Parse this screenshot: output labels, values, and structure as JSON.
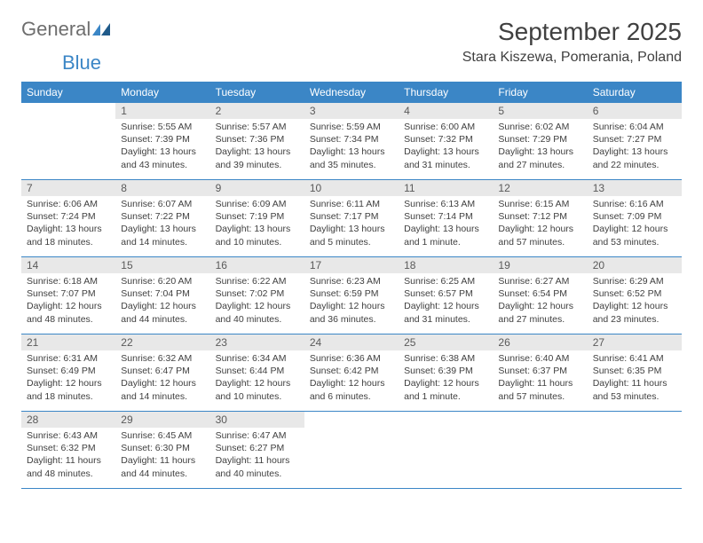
{
  "logo": {
    "text1": "General",
    "text2": "Blue"
  },
  "title": "September 2025",
  "location": "Stara Kiszewa, Pomerania, Poland",
  "colors": {
    "header_bg": "#3b86c6",
    "daynum_bg": "#e8e8e8",
    "text": "#404040"
  },
  "weekdays": [
    "Sunday",
    "Monday",
    "Tuesday",
    "Wednesday",
    "Thursday",
    "Friday",
    "Saturday"
  ],
  "days": [
    {
      "n": "",
      "sr": "",
      "ss": "",
      "dl": ""
    },
    {
      "n": "1",
      "sr": "Sunrise: 5:55 AM",
      "ss": "Sunset: 7:39 PM",
      "dl": "Daylight: 13 hours and 43 minutes."
    },
    {
      "n": "2",
      "sr": "Sunrise: 5:57 AM",
      "ss": "Sunset: 7:36 PM",
      "dl": "Daylight: 13 hours and 39 minutes."
    },
    {
      "n": "3",
      "sr": "Sunrise: 5:59 AM",
      "ss": "Sunset: 7:34 PM",
      "dl": "Daylight: 13 hours and 35 minutes."
    },
    {
      "n": "4",
      "sr": "Sunrise: 6:00 AM",
      "ss": "Sunset: 7:32 PM",
      "dl": "Daylight: 13 hours and 31 minutes."
    },
    {
      "n": "5",
      "sr": "Sunrise: 6:02 AM",
      "ss": "Sunset: 7:29 PM",
      "dl": "Daylight: 13 hours and 27 minutes."
    },
    {
      "n": "6",
      "sr": "Sunrise: 6:04 AM",
      "ss": "Sunset: 7:27 PM",
      "dl": "Daylight: 13 hours and 22 minutes."
    },
    {
      "n": "7",
      "sr": "Sunrise: 6:06 AM",
      "ss": "Sunset: 7:24 PM",
      "dl": "Daylight: 13 hours and 18 minutes."
    },
    {
      "n": "8",
      "sr": "Sunrise: 6:07 AM",
      "ss": "Sunset: 7:22 PM",
      "dl": "Daylight: 13 hours and 14 minutes."
    },
    {
      "n": "9",
      "sr": "Sunrise: 6:09 AM",
      "ss": "Sunset: 7:19 PM",
      "dl": "Daylight: 13 hours and 10 minutes."
    },
    {
      "n": "10",
      "sr": "Sunrise: 6:11 AM",
      "ss": "Sunset: 7:17 PM",
      "dl": "Daylight: 13 hours and 5 minutes."
    },
    {
      "n": "11",
      "sr": "Sunrise: 6:13 AM",
      "ss": "Sunset: 7:14 PM",
      "dl": "Daylight: 13 hours and 1 minute."
    },
    {
      "n": "12",
      "sr": "Sunrise: 6:15 AM",
      "ss": "Sunset: 7:12 PM",
      "dl": "Daylight: 12 hours and 57 minutes."
    },
    {
      "n": "13",
      "sr": "Sunrise: 6:16 AM",
      "ss": "Sunset: 7:09 PM",
      "dl": "Daylight: 12 hours and 53 minutes."
    },
    {
      "n": "14",
      "sr": "Sunrise: 6:18 AM",
      "ss": "Sunset: 7:07 PM",
      "dl": "Daylight: 12 hours and 48 minutes."
    },
    {
      "n": "15",
      "sr": "Sunrise: 6:20 AM",
      "ss": "Sunset: 7:04 PM",
      "dl": "Daylight: 12 hours and 44 minutes."
    },
    {
      "n": "16",
      "sr": "Sunrise: 6:22 AM",
      "ss": "Sunset: 7:02 PM",
      "dl": "Daylight: 12 hours and 40 minutes."
    },
    {
      "n": "17",
      "sr": "Sunrise: 6:23 AM",
      "ss": "Sunset: 6:59 PM",
      "dl": "Daylight: 12 hours and 36 minutes."
    },
    {
      "n": "18",
      "sr": "Sunrise: 6:25 AM",
      "ss": "Sunset: 6:57 PM",
      "dl": "Daylight: 12 hours and 31 minutes."
    },
    {
      "n": "19",
      "sr": "Sunrise: 6:27 AM",
      "ss": "Sunset: 6:54 PM",
      "dl": "Daylight: 12 hours and 27 minutes."
    },
    {
      "n": "20",
      "sr": "Sunrise: 6:29 AM",
      "ss": "Sunset: 6:52 PM",
      "dl": "Daylight: 12 hours and 23 minutes."
    },
    {
      "n": "21",
      "sr": "Sunrise: 6:31 AM",
      "ss": "Sunset: 6:49 PM",
      "dl": "Daylight: 12 hours and 18 minutes."
    },
    {
      "n": "22",
      "sr": "Sunrise: 6:32 AM",
      "ss": "Sunset: 6:47 PM",
      "dl": "Daylight: 12 hours and 14 minutes."
    },
    {
      "n": "23",
      "sr": "Sunrise: 6:34 AM",
      "ss": "Sunset: 6:44 PM",
      "dl": "Daylight: 12 hours and 10 minutes."
    },
    {
      "n": "24",
      "sr": "Sunrise: 6:36 AM",
      "ss": "Sunset: 6:42 PM",
      "dl": "Daylight: 12 hours and 6 minutes."
    },
    {
      "n": "25",
      "sr": "Sunrise: 6:38 AM",
      "ss": "Sunset: 6:39 PM",
      "dl": "Daylight: 12 hours and 1 minute."
    },
    {
      "n": "26",
      "sr": "Sunrise: 6:40 AM",
      "ss": "Sunset: 6:37 PM",
      "dl": "Daylight: 11 hours and 57 minutes."
    },
    {
      "n": "27",
      "sr": "Sunrise: 6:41 AM",
      "ss": "Sunset: 6:35 PM",
      "dl": "Daylight: 11 hours and 53 minutes."
    },
    {
      "n": "28",
      "sr": "Sunrise: 6:43 AM",
      "ss": "Sunset: 6:32 PM",
      "dl": "Daylight: 11 hours and 48 minutes."
    },
    {
      "n": "29",
      "sr": "Sunrise: 6:45 AM",
      "ss": "Sunset: 6:30 PM",
      "dl": "Daylight: 11 hours and 44 minutes."
    },
    {
      "n": "30",
      "sr": "Sunrise: 6:47 AM",
      "ss": "Sunset: 6:27 PM",
      "dl": "Daylight: 11 hours and 40 minutes."
    },
    {
      "n": "",
      "sr": "",
      "ss": "",
      "dl": ""
    },
    {
      "n": "",
      "sr": "",
      "ss": "",
      "dl": ""
    },
    {
      "n": "",
      "sr": "",
      "ss": "",
      "dl": ""
    },
    {
      "n": "",
      "sr": "",
      "ss": "",
      "dl": ""
    }
  ]
}
